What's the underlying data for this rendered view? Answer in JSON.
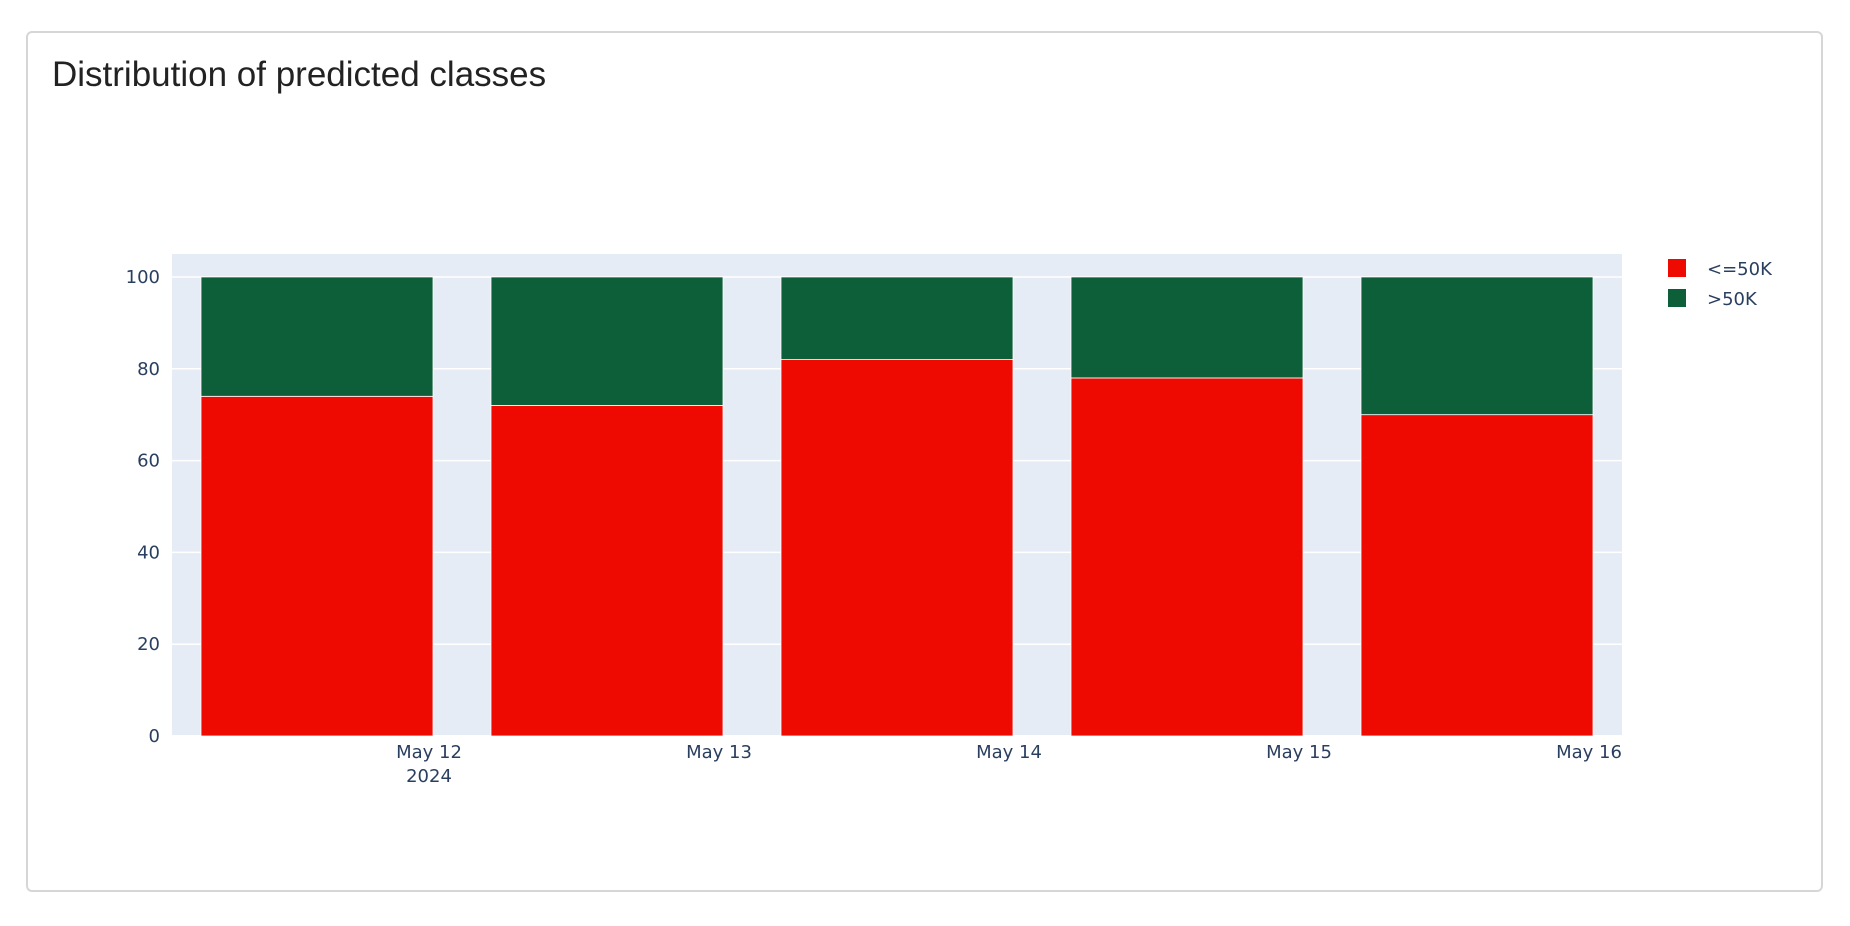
{
  "card": {
    "title": "Distribution of predicted classes"
  },
  "chart_data": {
    "type": "bar",
    "stacked": true,
    "categories": [
      "May 12",
      "May 13",
      "May 14",
      "May 15",
      "May 16"
    ],
    "x_year_label": "2024",
    "series": [
      {
        "name": "<=50K",
        "color": "#ee0a00",
        "values": [
          74,
          72,
          82,
          78,
          70
        ]
      },
      {
        "name": ">50K",
        "color": "#0c5f39",
        "values": [
          26,
          28,
          18,
          22,
          30
        ]
      }
    ],
    "ylim": [
      0,
      105
    ],
    "yticks": [
      0,
      20,
      40,
      60,
      80,
      100
    ],
    "grid": true,
    "plot_background": "#e5ecf6",
    "legend_position": "top-right"
  }
}
